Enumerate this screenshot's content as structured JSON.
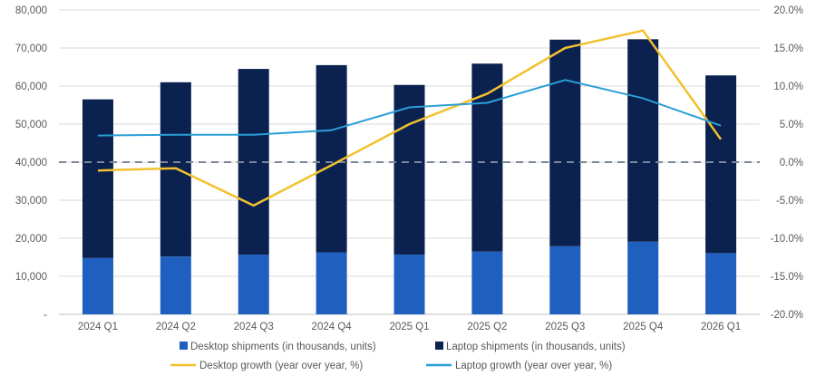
{
  "chart_data": {
    "type": "bar",
    "stacked": true,
    "categories": [
      "2024 Q1",
      "2024 Q2",
      "2024 Q3",
      "2024 Q4",
      "2025 Q1",
      "2025 Q2",
      "2025 Q3",
      "2025 Q4",
      "2026 Q1"
    ],
    "y_left": {
      "ylim": [
        0,
        80000
      ],
      "ticks": [
        0,
        10000,
        20000,
        30000,
        40000,
        50000,
        60000,
        70000,
        80000
      ],
      "tick_labels": [
        "-",
        "10,000",
        "20,000",
        "30,000",
        "40,000",
        "50,000",
        "60,000",
        "70,000",
        "80,000"
      ]
    },
    "y_right": {
      "ylim": [
        -20,
        20
      ],
      "ticks": [
        -20,
        -15,
        -10,
        -5,
        0,
        5,
        10,
        15,
        20
      ],
      "tick_labels": [
        "-20.0%",
        "-15.0%",
        "-10.0%",
        "-5.0%",
        "0.0%",
        "5.0%",
        "10.0%",
        "15.0%",
        "20.0%"
      ]
    },
    "series": [
      {
        "name": "Desktop shipments (in thousands, units)",
        "kind": "bar",
        "axis": "left",
        "color": "#1f5fbf",
        "values": [
          14800,
          15200,
          15700,
          16300,
          15700,
          16500,
          17900,
          19100,
          16100
        ]
      },
      {
        "name": "Laptop shipments (in thousands, units)",
        "kind": "bar",
        "axis": "left",
        "color": "#0b2150",
        "values": [
          41700,
          45800,
          48800,
          49200,
          44600,
          49400,
          54300,
          53200,
          46700
        ]
      },
      {
        "name": "Desktop growth (year over year, %)",
        "kind": "line",
        "axis": "right",
        "color": "#f2c12e",
        "values": [
          -1.1,
          -0.8,
          -5.7,
          -0.4,
          5.0,
          9.0,
          15.0,
          17.3,
          3.0
        ]
      },
      {
        "name": "Laptop growth (year over year, %)",
        "kind": "line",
        "axis": "right",
        "color": "#2a9fd6",
        "values": [
          3.5,
          3.6,
          3.6,
          4.2,
          7.2,
          7.8,
          10.8,
          8.4,
          4.8
        ]
      }
    ],
    "reference_line": {
      "axis": "right",
      "value": 0,
      "style": "dashed",
      "color": "#7b8799"
    },
    "grid": "horizontal",
    "legend_position": "bottom"
  }
}
